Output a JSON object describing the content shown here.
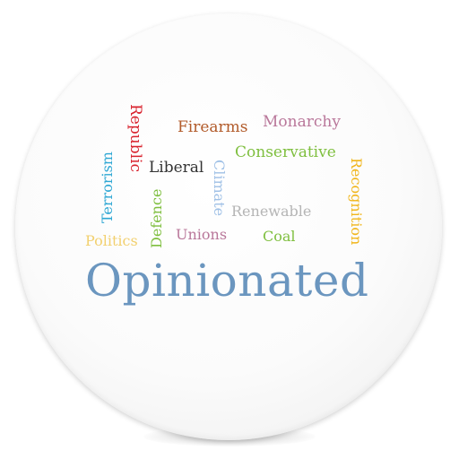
{
  "words": {
    "republic": {
      "text": "Republic",
      "color": "#d9232e"
    },
    "firearms": {
      "text": "Firearms",
      "color": "#b25b2a"
    },
    "monarchy": {
      "text": "Monarchy",
      "color": "#b9779a"
    },
    "conservative": {
      "text": "Conservative",
      "color": "#7fbf3f"
    },
    "terrorism": {
      "text": "Terrorism",
      "color": "#2ea7d4"
    },
    "liberal": {
      "text": "Liberal",
      "color": "#333333"
    },
    "climate": {
      "text": "Climate",
      "color": "#9fc0e6"
    },
    "recognition": {
      "text": "Recognition",
      "color": "#f1b61c"
    },
    "defence": {
      "text": "Defence",
      "color": "#7fbf3f"
    },
    "renewable": {
      "text": "Renewable",
      "color": "#b5b5b5"
    },
    "politics": {
      "text": "Politics",
      "color": "#f2d06f"
    },
    "unions": {
      "text": "Unions",
      "color": "#b9779a"
    },
    "coal": {
      "text": "Coal",
      "color": "#7fbf3f"
    },
    "opinionated": {
      "text": "Opinionated",
      "color": "#6b96bf"
    }
  }
}
